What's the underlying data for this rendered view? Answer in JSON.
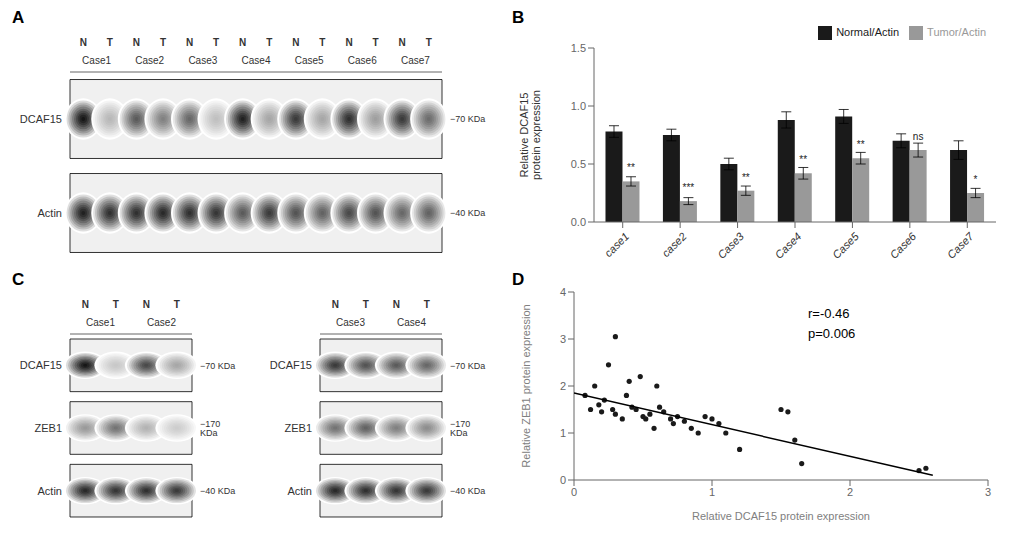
{
  "chart_data": [
    {
      "type": "blot",
      "title": "A",
      "categories": [
        "Case1",
        "Case2",
        "Case3",
        "Case4",
        "Case5",
        "Case6",
        "Case7"
      ],
      "subcategories": [
        "N",
        "T"
      ],
      "series": [
        {
          "name": "DCAF15",
          "annotation": "−70 KDa",
          "values": [
            [
              0.92,
              0.28
            ],
            [
              0.65,
              0.5
            ],
            [
              0.6,
              0.25
            ],
            [
              0.88,
              0.35
            ],
            [
              0.78,
              0.35
            ],
            [
              0.82,
              0.38
            ],
            [
              0.78,
              0.58
            ]
          ]
        },
        {
          "name": "Actin",
          "annotation": "−40 KDa",
          "values": [
            [
              0.88,
              0.82
            ],
            [
              0.82,
              0.85
            ],
            [
              0.82,
              0.8
            ],
            [
              0.65,
              0.78
            ],
            [
              0.68,
              0.62
            ],
            [
              0.72,
              0.68
            ],
            [
              0.6,
              0.62
            ]
          ]
        }
      ]
    },
    {
      "type": "bar",
      "title": "B",
      "categories": [
        "case1",
        "case2",
        "Case3",
        "Case4",
        "Case5",
        "Case6",
        "Case7"
      ],
      "ylabel": "Relative DCAF15\nprotein expression",
      "ylim": [
        0,
        1.5
      ],
      "yticks": [
        {
          "value": 0,
          "label": "0.0"
        },
        0.5,
        {
          "value": 1,
          "label": "1.0"
        },
        1.5
      ],
      "legend": "upper right",
      "series": [
        {
          "name": "Normal/Actin",
          "color": "#1a1a1a",
          "values": [
            0.78,
            0.75,
            0.5,
            0.88,
            0.91,
            0.7,
            0.62
          ],
          "errors": [
            0.05,
            0.05,
            0.05,
            0.07,
            0.06,
            0.06,
            0.08
          ]
        },
        {
          "name": "Tumor/Actin",
          "color": "#999999",
          "values": [
            0.35,
            0.18,
            0.27,
            0.42,
            0.55,
            0.62,
            0.25
          ],
          "errors": [
            0.04,
            0.03,
            0.04,
            0.05,
            0.05,
            0.06,
            0.04
          ],
          "annotations": [
            "**",
            "***",
            "**",
            "**",
            "**",
            "ns",
            "*"
          ]
        }
      ]
    },
    {
      "type": "blot",
      "title": "C",
      "categories": [
        "Case1",
        "Case2"
      ],
      "subcategories": [
        "N",
        "T"
      ],
      "series": [
        {
          "name": "DCAF15",
          "annotation": "−70 KDa",
          "values": [
            [
              0.92,
              0.22
            ],
            [
              0.72,
              0.35
            ]
          ]
        },
        {
          "name": "ZEB1",
          "annotation": "−170 KDa",
          "values": [
            [
              0.4,
              0.55
            ],
            [
              0.3,
              0.2
            ]
          ]
        },
        {
          "name": "Actin",
          "annotation": "−40 KDa",
          "values": [
            [
              0.85,
              0.8
            ],
            [
              0.82,
              0.78
            ]
          ]
        }
      ]
    },
    {
      "type": "blot",
      "categories": [
        "Case3",
        "Case4"
      ],
      "subcategories": [
        "N",
        "T"
      ],
      "series": [
        {
          "name": "DCAF15",
          "annotation": "−70 KDa",
          "values": [
            [
              0.78,
              0.68
            ],
            [
              0.65,
              0.6
            ]
          ]
        },
        {
          "name": "ZEB1",
          "annotation": "−170 KDa",
          "values": [
            [
              0.55,
              0.62
            ],
            [
              0.5,
              0.45
            ]
          ]
        },
        {
          "name": "Actin",
          "annotation": "−40 KDa",
          "values": [
            [
              0.85,
              0.82
            ],
            [
              0.8,
              0.78
            ]
          ]
        }
      ]
    },
    {
      "type": "scatter",
      "title": "D",
      "xlabel": "Relative DCAF15 protein expression",
      "ylabel": "Relative ZEB1 protein expression",
      "xlim": [
        0,
        3
      ],
      "ylim": [
        0,
        4
      ],
      "xticks": [
        0,
        1,
        2,
        3
      ],
      "yticks": [
        0,
        1,
        2,
        3,
        4
      ],
      "annotations": [
        "r=-0.46",
        "p=0.006"
      ],
      "series": [
        {
          "type": "scatter",
          "color": "#1a1a1a",
          "x": [
            0.08,
            0.12,
            0.15,
            0.18,
            0.2,
            0.22,
            0.25,
            0.28,
            0.3,
            0.3,
            0.35,
            0.38,
            0.4,
            0.42,
            0.45,
            0.48,
            0.5,
            0.52,
            0.55,
            0.58,
            0.6,
            0.62,
            0.65,
            0.7,
            0.72,
            0.75,
            0.8,
            0.85,
            0.9,
            0.95,
            1.0,
            1.05,
            1.1,
            1.2,
            1.5,
            1.55,
            1.6,
            1.65,
            2.5,
            2.55
          ],
          "y": [
            1.8,
            1.5,
            2.0,
            1.6,
            1.45,
            1.7,
            2.45,
            1.5,
            1.4,
            3.05,
            1.3,
            1.8,
            2.1,
            1.55,
            1.5,
            2.2,
            1.35,
            1.3,
            1.4,
            1.1,
            2.0,
            1.55,
            1.45,
            1.3,
            1.2,
            1.35,
            1.25,
            1.1,
            1.0,
            1.35,
            1.3,
            1.2,
            1.0,
            0.65,
            1.5,
            1.45,
            0.85,
            0.35,
            0.2,
            0.25
          ]
        },
        {
          "type": "line",
          "color": "black",
          "x": [
            0,
            2.6
          ],
          "y": [
            1.85,
            0.1
          ]
        }
      ]
    }
  ]
}
